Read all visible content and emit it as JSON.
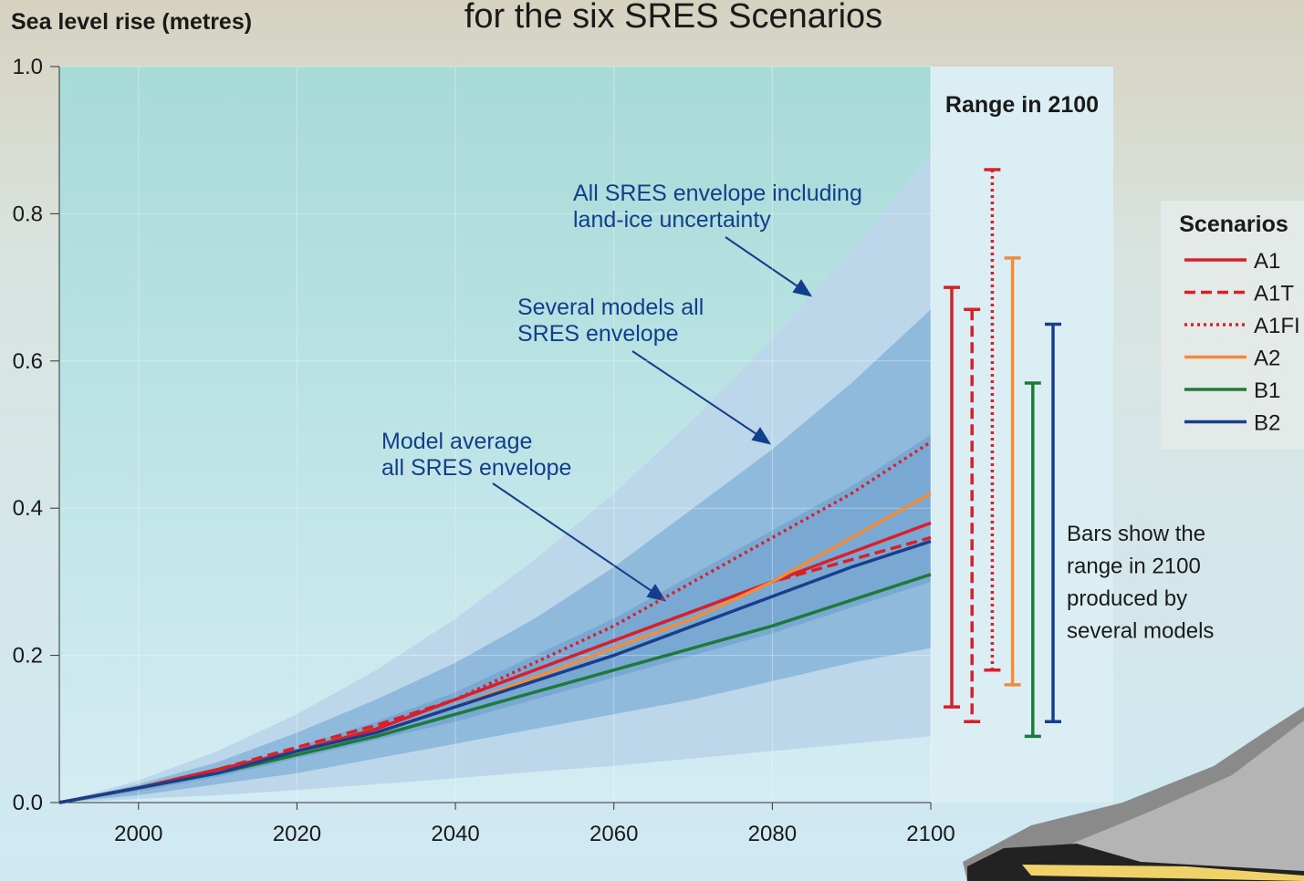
{
  "chart_data": {
    "type": "line",
    "title": "for the six SRES Scenarios",
    "y_label": "Sea level rise (metres)",
    "x": [
      1990,
      2000,
      2010,
      2020,
      2030,
      2040,
      2050,
      2060,
      2070,
      2080,
      2090,
      2100
    ],
    "xlim": [
      1990,
      2100
    ],
    "xticks": [
      2000,
      2020,
      2040,
      2060,
      2080,
      2100
    ],
    "ylim": [
      0,
      1
    ],
    "yticks": [
      {
        "value": 0,
        "label": "0.0"
      },
      0.2,
      0.4,
      0.6,
      0.8,
      {
        "value": 1,
        "label": "1.0"
      }
    ],
    "grid": true,
    "legend_title": "Scenarios",
    "legend": "right",
    "series": [
      {
        "name": "A1",
        "color": "#d9202a",
        "dash": "solid",
        "values": [
          0,
          0.02,
          0.045,
          0.07,
          0.1,
          0.14,
          0.18,
          0.22,
          0.26,
          0.3,
          0.34,
          0.38
        ],
        "range": [
          0.13,
          0.7
        ]
      },
      {
        "name": "A1T",
        "color": "#d9202a",
        "dash": "dashed",
        "values": [
          0,
          0.02,
          0.045,
          0.075,
          0.105,
          0.14,
          0.18,
          0.22,
          0.26,
          0.3,
          0.33,
          0.36
        ],
        "range": [
          0.11,
          0.67
        ]
      },
      {
        "name": "A1FI",
        "color": "#d9202a",
        "dash": "dotted",
        "values": [
          0,
          0.02,
          0.045,
          0.07,
          0.1,
          0.14,
          0.19,
          0.24,
          0.3,
          0.36,
          0.42,
          0.49
        ],
        "range": [
          0.18,
          0.86
        ]
      },
      {
        "name": "A2",
        "color": "#f28c3a",
        "dash": "solid",
        "values": [
          0,
          0.02,
          0.04,
          0.07,
          0.095,
          0.13,
          0.17,
          0.21,
          0.25,
          0.3,
          0.36,
          0.42
        ],
        "range": [
          0.16,
          0.74
        ]
      },
      {
        "name": "B1",
        "color": "#1e7a3a",
        "dash": "solid",
        "values": [
          0,
          0.02,
          0.04,
          0.065,
          0.09,
          0.12,
          0.15,
          0.18,
          0.21,
          0.24,
          0.275,
          0.31
        ],
        "range": [
          0.09,
          0.57
        ]
      },
      {
        "name": "B2",
        "color": "#1a3e8c",
        "dash": "solid",
        "values": [
          0,
          0.02,
          0.04,
          0.07,
          0.095,
          0.13,
          0.165,
          0.2,
          0.24,
          0.28,
          0.32,
          0.355
        ],
        "range": [
          0.11,
          0.65
        ]
      }
    ],
    "envelopes": [
      {
        "label": [
          "All SRES envelope including",
          "land-ice uncertainty"
        ],
        "color": "#bcd7ea",
        "lower": [
          0,
          0.005,
          0.01,
          0.017,
          0.025,
          0.033,
          0.042,
          0.05,
          0.06,
          0.07,
          0.08,
          0.09
        ],
        "upper": [
          0,
          0.03,
          0.07,
          0.12,
          0.18,
          0.25,
          0.33,
          0.42,
          0.52,
          0.63,
          0.75,
          0.88
        ]
      },
      {
        "label": [
          "Several models all",
          "SRES envelope"
        ],
        "color": "#8fbadc",
        "lower": [
          0,
          0.01,
          0.025,
          0.04,
          0.06,
          0.08,
          0.1,
          0.12,
          0.14,
          0.165,
          0.19,
          0.21
        ],
        "upper": [
          0,
          0.025,
          0.055,
          0.095,
          0.14,
          0.19,
          0.25,
          0.32,
          0.4,
          0.48,
          0.57,
          0.67
        ]
      },
      {
        "label": [
          "Model average",
          "all SRES envelope"
        ],
        "color": "#79a9d3",
        "lower": [
          0,
          0.015,
          0.035,
          0.06,
          0.085,
          0.11,
          0.14,
          0.17,
          0.2,
          0.23,
          0.265,
          0.3
        ],
        "upper": [
          0,
          0.02,
          0.045,
          0.075,
          0.11,
          0.15,
          0.2,
          0.25,
          0.31,
          0.37,
          0.43,
          0.5
        ]
      }
    ],
    "range_title": "Range in 2100",
    "range_note": [
      "Bars show  the",
      "range in 2100",
      "produced by",
      "several models"
    ]
  }
}
